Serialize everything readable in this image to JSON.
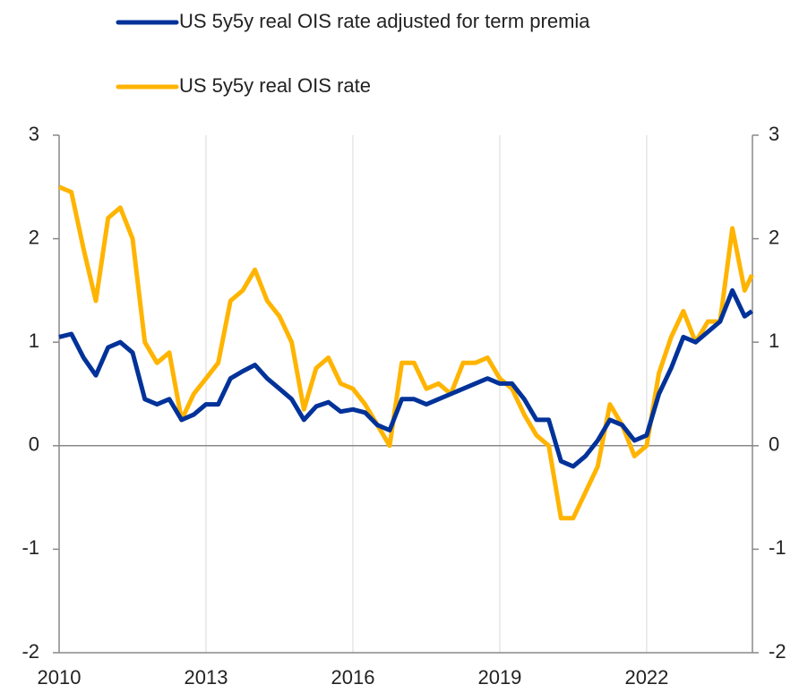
{
  "chart_data": {
    "type": "line",
    "x": [
      2010.0,
      2010.25,
      2010.5,
      2010.75,
      2011.0,
      2011.25,
      2011.5,
      2011.75,
      2012.0,
      2012.25,
      2012.5,
      2012.75,
      2013.0,
      2013.25,
      2013.5,
      2013.75,
      2014.0,
      2014.25,
      2014.5,
      2014.75,
      2015.0,
      2015.25,
      2015.5,
      2015.75,
      2016.0,
      2016.25,
      2016.5,
      2016.75,
      2017.0,
      2017.25,
      2017.5,
      2017.75,
      2018.0,
      2018.25,
      2018.5,
      2018.75,
      2019.0,
      2019.25,
      2019.5,
      2019.75,
      2020.0,
      2020.25,
      2020.5,
      2020.75,
      2021.0,
      2021.25,
      2021.5,
      2021.75,
      2022.0,
      2022.25,
      2022.5,
      2022.75,
      2023.0,
      2023.25,
      2023.5,
      2023.75,
      2024.0,
      2024.15
    ],
    "series": [
      {
        "name": "US 5y5y real OIS rate adjusted for term premia",
        "color": "#003299",
        "values": [
          1.05,
          1.08,
          0.85,
          0.68,
          0.95,
          1.0,
          0.9,
          0.45,
          0.4,
          0.45,
          0.25,
          0.3,
          0.4,
          0.4,
          0.65,
          0.72,
          0.78,
          0.65,
          0.55,
          0.45,
          0.25,
          0.38,
          0.42,
          0.33,
          0.35,
          0.32,
          0.2,
          0.15,
          0.45,
          0.45,
          0.4,
          0.45,
          0.5,
          0.55,
          0.6,
          0.65,
          0.6,
          0.6,
          0.45,
          0.25,
          0.25,
          -0.15,
          -0.2,
          -0.1,
          0.05,
          0.25,
          0.2,
          0.05,
          0.1,
          0.5,
          0.75,
          1.05,
          1.0,
          1.1,
          1.2,
          1.5,
          1.25,
          1.3
        ]
      },
      {
        "name": "US 5y5y real OIS rate",
        "color": "#FFB400",
        "values": [
          2.5,
          2.45,
          1.9,
          1.4,
          2.2,
          2.3,
          2.0,
          1.0,
          0.8,
          0.9,
          0.25,
          0.5,
          0.65,
          0.8,
          1.4,
          1.5,
          1.7,
          1.4,
          1.25,
          1.0,
          0.35,
          0.75,
          0.85,
          0.6,
          0.55,
          0.4,
          0.2,
          0.0,
          0.8,
          0.8,
          0.55,
          0.6,
          0.5,
          0.8,
          0.8,
          0.85,
          0.65,
          0.55,
          0.3,
          0.1,
          0.0,
          -0.7,
          -0.7,
          -0.45,
          -0.2,
          0.4,
          0.2,
          -0.1,
          0.0,
          0.7,
          1.05,
          1.3,
          1.0,
          1.2,
          1.2,
          2.1,
          1.5,
          1.65
        ]
      }
    ],
    "xlim": [
      2010,
      2024.16
    ],
    "xticks": [
      2010,
      2013,
      2016,
      2019,
      2022
    ],
    "ylim": [
      -2,
      3
    ],
    "yticks": [
      -2,
      -1,
      0,
      1,
      2,
      3
    ],
    "y2lim": [
      -2,
      3
    ],
    "y2ticks": [
      -2,
      -1,
      0,
      1,
      2,
      3
    ],
    "grid": true,
    "legend": "top"
  }
}
